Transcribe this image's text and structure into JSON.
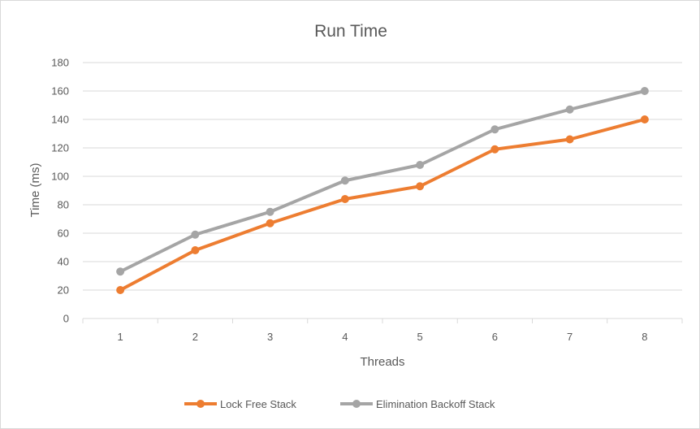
{
  "chart_data": {
    "type": "line",
    "title": "Run Time",
    "xlabel": "Threads",
    "ylabel": "Time (ms)",
    "categories": [
      "1",
      "2",
      "3",
      "4",
      "5",
      "6",
      "7",
      "8"
    ],
    "ylim": [
      0,
      180
    ],
    "yticks": [
      "0",
      "20",
      "40",
      "60",
      "80",
      "100",
      "120",
      "140",
      "160",
      "180"
    ],
    "grid": true,
    "legend_position": "bottom",
    "series": [
      {
        "name": "Lock Free Stack",
        "color": "#ED7D31",
        "values": [
          20,
          48,
          67,
          84,
          93,
          119,
          126,
          140
        ]
      },
      {
        "name": "Elimination Backoff Stack",
        "color": "#A5A5A5",
        "values": [
          33,
          59,
          75,
          97,
          108,
          133,
          147,
          160
        ]
      }
    ]
  }
}
